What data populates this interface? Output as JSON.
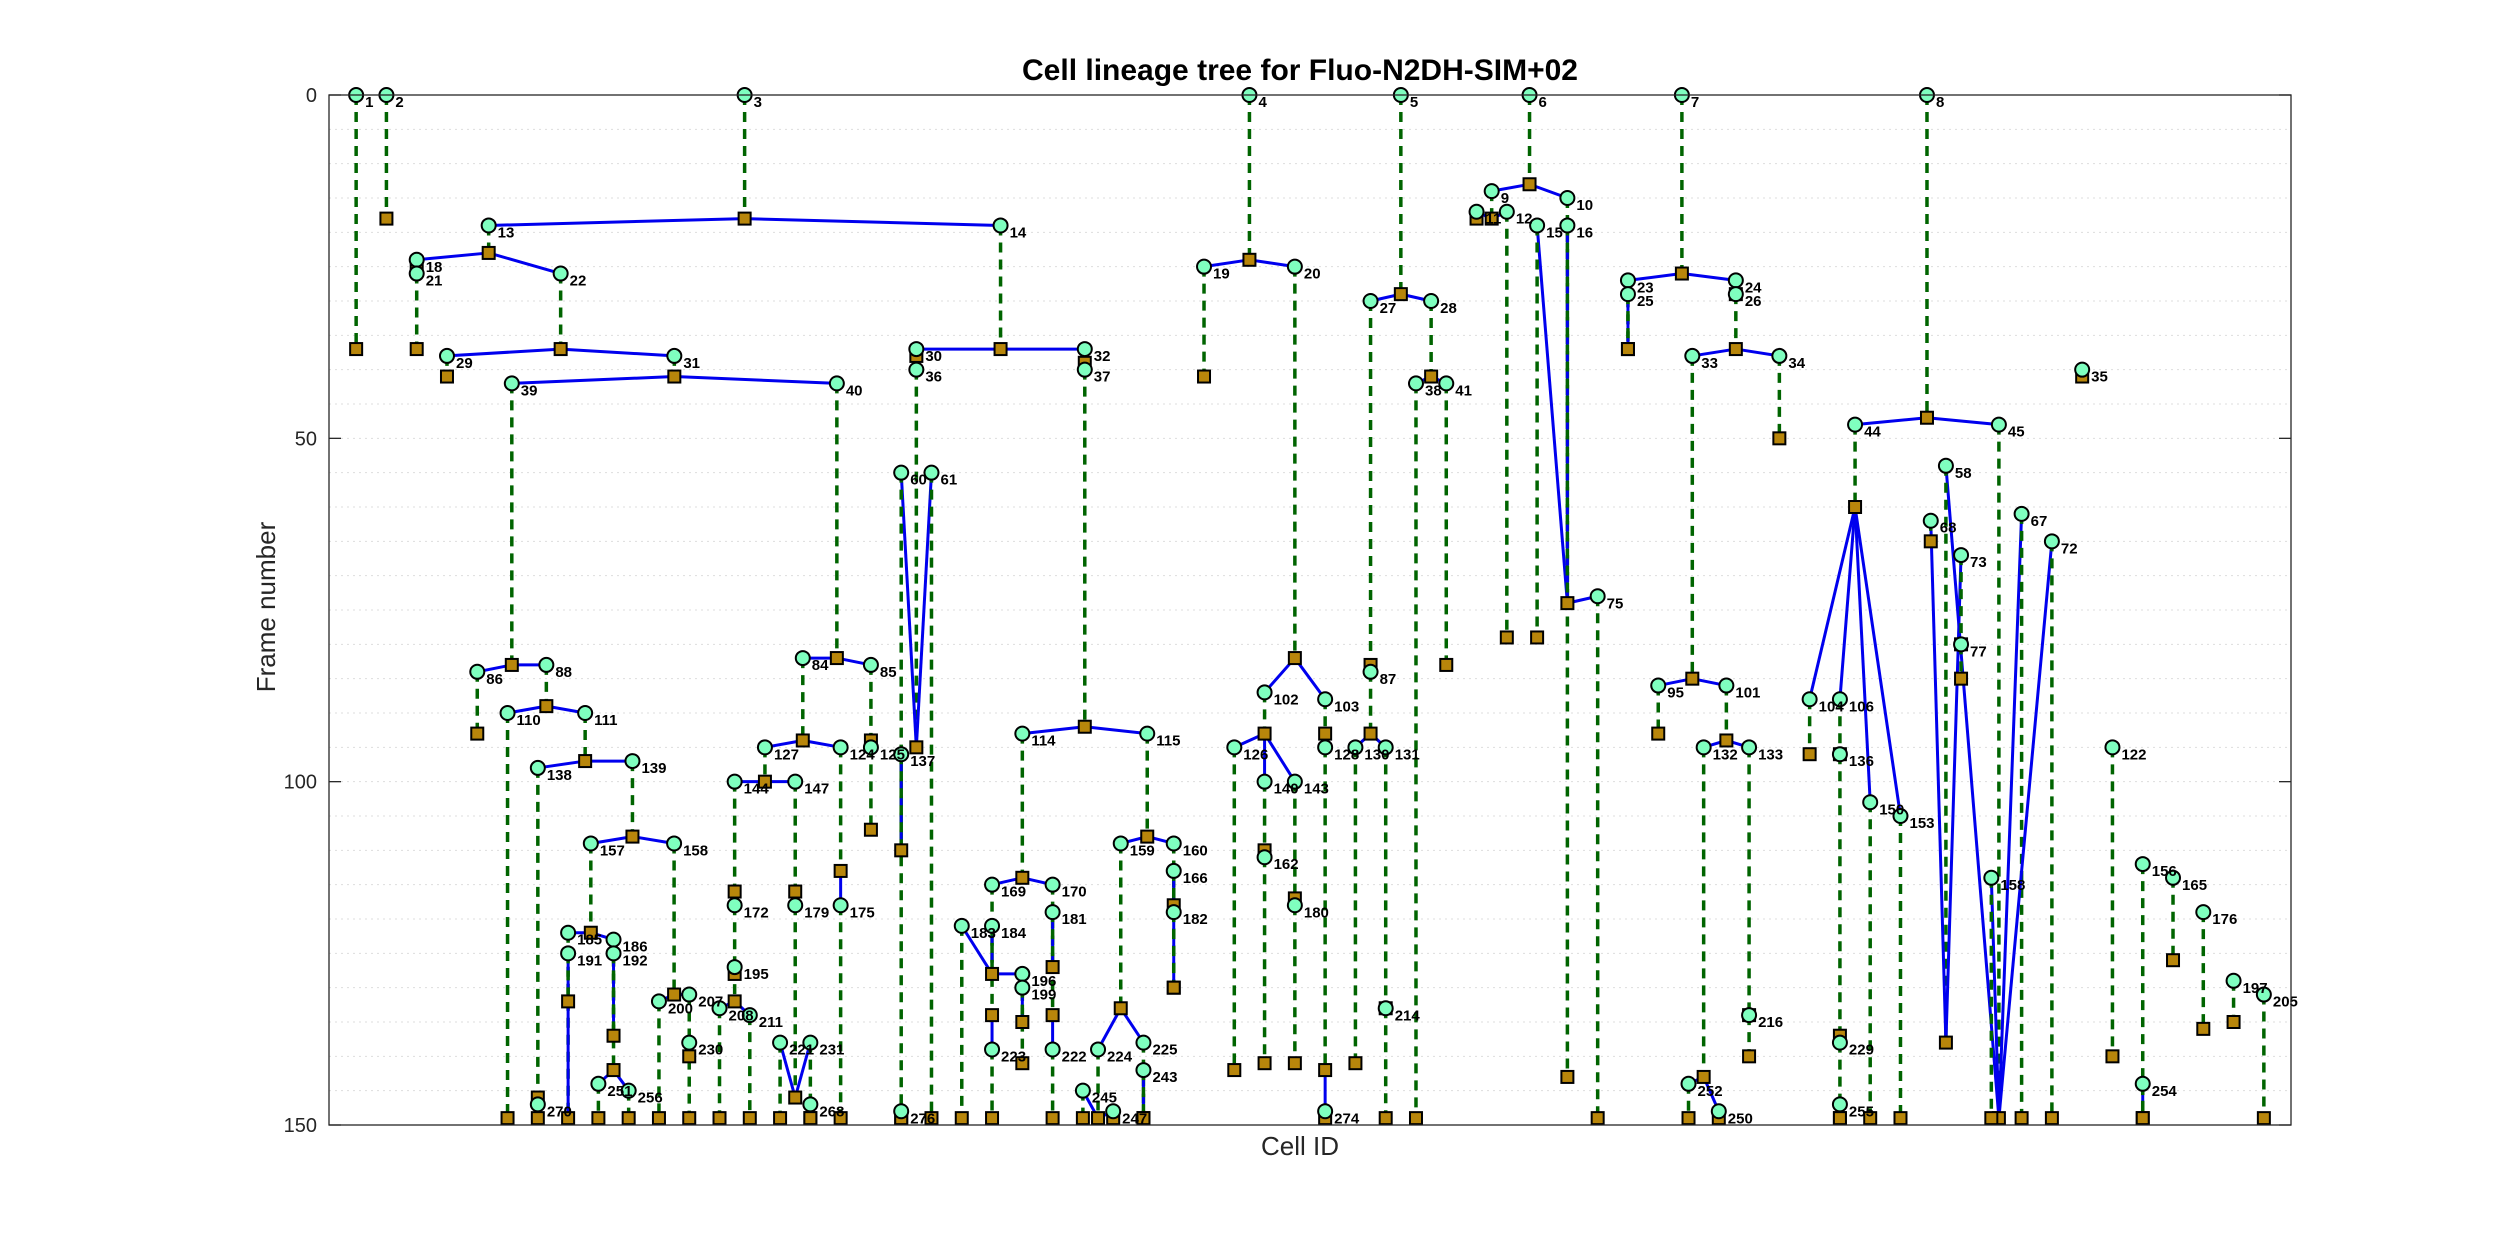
{
  "chart_data": {
    "type": "lineage-tree",
    "title": "Cell lineage tree for Fluo-N2DH-SIM+02",
    "xlabel": "Cell ID",
    "ylabel": "Frame number",
    "ylim": [
      0,
      150
    ],
    "yticks": [
      0,
      50,
      100,
      150
    ],
    "y_reversed": true,
    "ygrid_minor": true,
    "colors": {
      "lifetime": "#006400",
      "division": "#0000ee",
      "start_fill": "#7fffbf",
      "end_fill": "#b8860b",
      "axis": "#262626",
      "grid": "#dddddd"
    },
    "cells": [
      {
        "id": "1",
        "start": 0,
        "end": 37,
        "parent": null
      },
      {
        "id": "2",
        "start": 0,
        "end": 18,
        "parent": null
      },
      {
        "id": "3",
        "start": 0,
        "end": 18,
        "parent": null
      },
      {
        "id": "4",
        "start": 0,
        "end": 24,
        "parent": null
      },
      {
        "id": "5",
        "start": 0,
        "end": 29,
        "parent": null
      },
      {
        "id": "6",
        "start": 0,
        "end": 13,
        "parent": null
      },
      {
        "id": "7",
        "start": 0,
        "end": 26,
        "parent": null
      },
      {
        "id": "8",
        "start": 0,
        "end": 47,
        "parent": null
      },
      {
        "id": "13",
        "start": 19,
        "end": 23,
        "parent": "3"
      },
      {
        "id": "14",
        "start": 19,
        "end": 37,
        "parent": "3"
      },
      {
        "id": "18",
        "start": 24,
        "end": 25,
        "parent": "13"
      },
      {
        "id": "22",
        "start": 26,
        "end": 37,
        "parent": "13"
      },
      {
        "id": "21",
        "start": 26,
        "end": 37,
        "parent": "18"
      },
      {
        "id": "29",
        "start": 38,
        "end": 41,
        "parent": "22"
      },
      {
        "id": "31",
        "start": 38,
        "end": 41,
        "parent": "22"
      },
      {
        "id": "39",
        "start": 42,
        "end": 83,
        "parent": "31"
      },
      {
        "id": "40",
        "start": 42,
        "end": 82,
        "parent": "31"
      },
      {
        "id": "30",
        "start": 37,
        "end": 38,
        "parent": "14"
      },
      {
        "id": "32",
        "start": 37,
        "end": 39,
        "parent": "14"
      },
      {
        "id": "36",
        "start": 40,
        "end": 95,
        "parent": "30"
      },
      {
        "id": "37",
        "start": 40,
        "end": 92,
        "parent": "32"
      },
      {
        "id": "60",
        "start": 55,
        "end": 110,
        "parent": "36"
      },
      {
        "id": "61",
        "start": 55,
        "end": 149,
        "parent": "36"
      },
      {
        "id": "19",
        "start": 25,
        "end": 41,
        "parent": "4"
      },
      {
        "id": "20",
        "start": 25,
        "end": 82,
        "parent": "4"
      },
      {
        "id": "27",
        "start": 30,
        "end": 83,
        "parent": "5"
      },
      {
        "id": "28",
        "start": 30,
        "end": 41,
        "parent": "5"
      },
      {
        "id": "38",
        "start": 42,
        "end": 149,
        "parent": "28"
      },
      {
        "id": "41",
        "start": 42,
        "end": 83,
        "parent": "28"
      },
      {
        "id": "9",
        "start": 14,
        "end": 18,
        "parent": "6"
      },
      {
        "id": "10",
        "start": 15,
        "end": 74,
        "parent": "6"
      },
      {
        "id": "11",
        "start": 17,
        "end": 18,
        "parent": "9"
      },
      {
        "id": "12",
        "start": 17,
        "end": 79,
        "parent": "9"
      },
      {
        "id": "15",
        "start": 19,
        "end": 79,
        "parent": "10"
      },
      {
        "id": "16",
        "start": 19,
        "end": 143,
        "parent": "10"
      },
      {
        "id": "23",
        "start": 27,
        "end": 37,
        "parent": "7"
      },
      {
        "id": "24",
        "start": 27,
        "end": 29,
        "parent": "7"
      },
      {
        "id": "25",
        "start": 29,
        "end": 37,
        "parent": "23"
      },
      {
        "id": "26",
        "start": 29,
        "end": 37,
        "parent": "24"
      },
      {
        "id": "33",
        "start": 38,
        "end": 85,
        "parent": "26"
      },
      {
        "id": "34",
        "start": 38,
        "end": 50,
        "parent": "26"
      },
      {
        "id": "35",
        "start": 40,
        "end": 41,
        "parent": null
      },
      {
        "id": "44",
        "start": 48,
        "end": 60,
        "parent": "8"
      },
      {
        "id": "45",
        "start": 48,
        "end": 149,
        "parent": "8"
      },
      {
        "id": "58",
        "start": 54,
        "end": 138,
        "parent": "45"
      },
      {
        "id": "68",
        "start": 62,
        "end": 65,
        "parent": "58"
      },
      {
        "id": "73",
        "start": 67,
        "end": 80,
        "parent": "58"
      },
      {
        "id": "75",
        "start": 73,
        "end": 149,
        "parent": "10"
      },
      {
        "id": "86",
        "start": 84,
        "end": 93,
        "parent": "39"
      },
      {
        "id": "88",
        "start": 83,
        "end": 89,
        "parent": "39"
      },
      {
        "id": "84",
        "start": 82,
        "end": 94,
        "parent": "40"
      },
      {
        "id": "85",
        "start": 83,
        "end": 94,
        "parent": "40"
      },
      {
        "id": "87",
        "start": 84,
        "end": 93,
        "parent": "27"
      },
      {
        "id": "95",
        "start": 86,
        "end": 93,
        "parent": "33"
      },
      {
        "id": "101",
        "start": 86,
        "end": 94,
        "parent": "33"
      },
      {
        "id": "102",
        "start": 87,
        "end": 93,
        "parent": "20"
      },
      {
        "id": "103",
        "start": 88,
        "end": 93,
        "parent": "20"
      },
      {
        "id": "104",
        "start": 88,
        "end": 96,
        "parent": "44"
      },
      {
        "id": "106",
        "start": 88,
        "end": 96,
        "parent": "44"
      },
      {
        "id": "110",
        "start": 90,
        "end": 149,
        "parent": "88"
      },
      {
        "id": "111",
        "start": 90,
        "end": 97,
        "parent": "88"
      },
      {
        "id": "114",
        "start": 93,
        "end": 114,
        "parent": "37"
      },
      {
        "id": "115",
        "start": 93,
        "end": 108,
        "parent": "37"
      },
      {
        "id": "127",
        "start": 95,
        "end": 100,
        "parent": "84"
      },
      {
        "id": "124",
        "start": 95,
        "end": 113,
        "parent": "84"
      },
      {
        "id": "125",
        "start": 95,
        "end": 107,
        "parent": "85"
      },
      {
        "id": "137",
        "start": 96,
        "end": 149,
        "parent": "60"
      },
      {
        "id": "126",
        "start": 95,
        "end": 142,
        "parent": "102"
      },
      {
        "id": "128",
        "start": 95,
        "end": 142,
        "parent": "103"
      },
      {
        "id": "130",
        "start": 95,
        "end": 141,
        "parent": "87"
      },
      {
        "id": "131",
        "start": 95,
        "end": 133,
        "parent": "87"
      },
      {
        "id": "132",
        "start": 95,
        "end": 143,
        "parent": "101"
      },
      {
        "id": "133",
        "start": 95,
        "end": 134,
        "parent": "101"
      },
      {
        "id": "136",
        "start": 96,
        "end": 137,
        "parent": "106"
      },
      {
        "id": "138",
        "start": 98,
        "end": 146,
        "parent": "111"
      },
      {
        "id": "139",
        "start": 97,
        "end": 108,
        "parent": "111"
      },
      {
        "id": "140",
        "start": 100,
        "end": 110,
        "parent": "102"
      },
      {
        "id": "143",
        "start": 100,
        "end": 117,
        "parent": "102"
      },
      {
        "id": "144",
        "start": 100,
        "end": 116,
        "parent": "127"
      },
      {
        "id": "147",
        "start": 100,
        "end": 116,
        "parent": "127"
      },
      {
        "id": "157",
        "start": 109,
        "end": 122,
        "parent": "139"
      },
      {
        "id": "158",
        "start": 109,
        "end": 131,
        "parent": "139"
      },
      {
        "id": "159",
        "start": 109,
        "end": 133,
        "parent": "115"
      },
      {
        "id": "160",
        "start": 109,
        "end": 130,
        "parent": "115"
      },
      {
        "id": "162",
        "start": 111,
        "end": 141,
        "parent": "140"
      },
      {
        "id": "166",
        "start": 113,
        "end": 118,
        "parent": "160"
      },
      {
        "id": "169",
        "start": 115,
        "end": 128,
        "parent": "114"
      },
      {
        "id": "170",
        "start": 115,
        "end": 127,
        "parent": "114"
      },
      {
        "id": "172",
        "start": 118,
        "end": 128,
        "parent": "144"
      },
      {
        "id": "175",
        "start": 118,
        "end": 149,
        "parent": "124"
      },
      {
        "id": "179",
        "start": 118,
        "end": 146,
        "parent": "147"
      },
      {
        "id": "180",
        "start": 118,
        "end": 141,
        "parent": "143"
      },
      {
        "id": "181",
        "start": 119,
        "end": 134,
        "parent": "170"
      },
      {
        "id": "182",
        "start": 119,
        "end": 130,
        "parent": "166"
      },
      {
        "id": "183",
        "start": 121,
        "end": 149,
        "parent": "169"
      },
      {
        "id": "184",
        "start": 121,
        "end": 134,
        "parent": "169"
      },
      {
        "id": "185",
        "start": 122,
        "end": 149,
        "parent": "157"
      },
      {
        "id": "186",
        "start": 123,
        "end": 137,
        "parent": "157"
      },
      {
        "id": "191",
        "start": 125,
        "end": 132,
        "parent": "185"
      },
      {
        "id": "192",
        "start": 125,
        "end": 142,
        "parent": "186"
      },
      {
        "id": "195",
        "start": 127,
        "end": 132,
        "parent": "172"
      },
      {
        "id": "196",
        "start": 128,
        "end": 135,
        "parent": "169"
      },
      {
        "id": "199",
        "start": 130,
        "end": 141,
        "parent": "196"
      },
      {
        "id": "200",
        "start": 132,
        "end": 149,
        "parent": "158"
      },
      {
        "id": "207",
        "start": 131,
        "end": 140,
        "parent": "158"
      },
      {
        "id": "208",
        "start": 133,
        "end": 149,
        "parent": "195"
      },
      {
        "id": "211",
        "start": 134,
        "end": 149,
        "parent": "195"
      },
      {
        "id": "214",
        "start": 133,
        "end": 149,
        "parent": "131"
      },
      {
        "id": "216",
        "start": 134,
        "end": 140,
        "parent": "133"
      },
      {
        "id": "221",
        "start": 138,
        "end": 149,
        "parent": "179"
      },
      {
        "id": "222",
        "start": 139,
        "end": 149,
        "parent": "181"
      },
      {
        "id": "223",
        "start": 139,
        "end": 149,
        "parent": "184"
      },
      {
        "id": "224",
        "start": 139,
        "end": 149,
        "parent": "159"
      },
      {
        "id": "225",
        "start": 138,
        "end": 149,
        "parent": "159"
      },
      {
        "id": "229",
        "start": 138,
        "end": 149,
        "parent": "136"
      },
      {
        "id": "230",
        "start": 138,
        "end": 149,
        "parent": "207"
      },
      {
        "id": "231",
        "start": 138,
        "end": 149,
        "parent": "179"
      },
      {
        "id": "243",
        "start": 142,
        "end": 149,
        "parent": "225"
      },
      {
        "id": "245",
        "start": 145,
        "end": 149,
        "parent": "224"
      },
      {
        "id": "247",
        "start": 148,
        "end": 149,
        "parent": "224"
      },
      {
        "id": "251",
        "start": 144,
        "end": 149,
        "parent": "192"
      },
      {
        "id": "252",
        "start": 144,
        "end": 149,
        "parent": "132"
      },
      {
        "id": "254",
        "start": 144,
        "end": 149,
        "parent": "156"
      },
      {
        "id": "255",
        "start": 147,
        "end": 149,
        "parent": "229"
      },
      {
        "id": "256",
        "start": 145,
        "end": 149,
        "parent": "192"
      },
      {
        "id": "268",
        "start": 147,
        "end": 149,
        "parent": "231"
      },
      {
        "id": "270",
        "start": 147,
        "end": 149,
        "parent": "138"
      },
      {
        "id": "274",
        "start": 148,
        "end": 149,
        "parent": "128"
      },
      {
        "id": "276",
        "start": 148,
        "end": 149,
        "parent": "137"
      },
      {
        "id": "250",
        "start": 148,
        "end": 149,
        "parent": "132"
      },
      {
        "id": "122",
        "start": 95,
        "end": 140,
        "parent": null
      },
      {
        "id": "156",
        "start": 112,
        "end": 149,
        "parent": null
      },
      {
        "id": "165",
        "start": 114,
        "end": 126,
        "parent": null
      },
      {
        "id": "176",
        "start": 119,
        "end": 136,
        "parent": null
      },
      {
        "id": "197",
        "start": 129,
        "end": 135,
        "parent": null
      },
      {
        "id": "205",
        "start": 131,
        "end": 149,
        "parent": null
      },
      {
        "id": "150",
        "start": 103,
        "end": 149,
        "parent": "44"
      },
      {
        "id": "153",
        "start": 105,
        "end": 149,
        "parent": "44"
      },
      {
        "id": "158b",
        "start": 114,
        "end": 149,
        "parent": "45"
      },
      {
        "id": "67",
        "start": 61,
        "end": 149,
        "parent": "45"
      },
      {
        "id": "72",
        "start": 65,
        "end": 149,
        "parent": "45"
      },
      {
        "id": "77",
        "start": 80,
        "end": 85,
        "parent": "73"
      }
    ]
  }
}
